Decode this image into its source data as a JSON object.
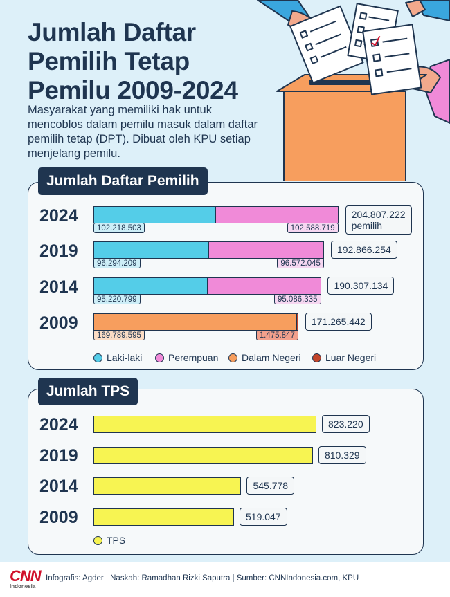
{
  "title": [
    "Jumlah Daftar",
    "Pemilih Tetap",
    "Pemilu 2009-2024"
  ],
  "subtitle": "Masyarakat yang memiliki hak untuk mencoblos dalam pemilu masuk dalam daftar pemilih tetap (DPT). Dibuat oleh KPU setiap menjelang pemilu.",
  "colors": {
    "laki_laki": "#54cde8",
    "perempuan": "#f08ad8",
    "dalam_negeri": "#f79e5e",
    "luar_negeri": "#c2452a",
    "tps": "#f7f452",
    "navy": "#1f3550",
    "background": "#ddf0f9"
  },
  "chart_data": [
    {
      "type": "bar",
      "stacked": true,
      "orientation": "horizontal",
      "title": "Jumlah Daftar Pemilih",
      "categories": [
        "2024",
        "2019",
        "2014",
        "2009"
      ],
      "legend": [
        "Laki-laki",
        "Perempuan",
        "Dalam Negeri",
        "Luar Negeri"
      ],
      "legend_position": "bottom",
      "rows": [
        {
          "year": "2024",
          "total": 204807222,
          "total_label": "204.807.222",
          "total_suffix": "pemilih",
          "segments": [
            {
              "name": "Laki-laki",
              "value": 102218503,
              "label": "102.218.503"
            },
            {
              "name": "Perempuan",
              "value": 102588719,
              "label": "102.588.719"
            }
          ]
        },
        {
          "year": "2019",
          "total": 192866254,
          "total_label": "192.866.254",
          "segments": [
            {
              "name": "Laki-laki",
              "value": 96294209,
              "label": "96.294.209"
            },
            {
              "name": "Perempuan",
              "value": 96572045,
              "label": "96.572.045"
            }
          ]
        },
        {
          "year": "2014",
          "total": 190307134,
          "total_label": "190.307.134",
          "segments": [
            {
              "name": "Laki-laki",
              "value": 95220799,
              "label": "95.220.799"
            },
            {
              "name": "Perempuan",
              "value": 95086335,
              "label": "95.086.335"
            }
          ]
        },
        {
          "year": "2009",
          "total": 171265442,
          "total_label": "171.265.442",
          "segments": [
            {
              "name": "Dalam Negeri",
              "value": 169789595,
              "label": "169.789.595"
            },
            {
              "name": "Luar Negeri",
              "value": 1475847,
              "label": "1.475.847"
            }
          ]
        }
      ]
    },
    {
      "type": "bar",
      "orientation": "horizontal",
      "title": "Jumlah TPS",
      "categories": [
        "2024",
        "2019",
        "2014",
        "2009"
      ],
      "legend": [
        "TPS"
      ],
      "legend_position": "bottom-left",
      "values": [
        823220,
        810329,
        545778,
        519047
      ],
      "value_labels": [
        "823.220",
        "810.329",
        "545.778",
        "519.047"
      ]
    }
  ],
  "footer": {
    "logo_text": "CNN",
    "logo_subtext": "Indonesia",
    "credits": "Infografis: Agder | Naskah: Ramadhan Rizki Saputra | Sumber: CNNIndonesia.com, KPU"
  }
}
